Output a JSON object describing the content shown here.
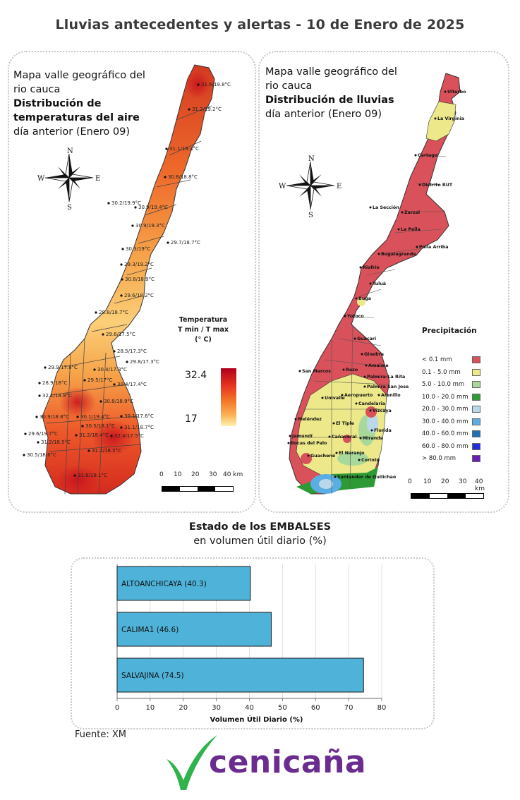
{
  "title": "Lluvias antecedentes y alertas - 10 de Enero de 2025",
  "temp_map": {
    "heading_line1": "Mapa valle geográfico del",
    "heading_line2": "rio cauca",
    "heading_bold1": "Distribución de",
    "heading_bold2": "temperaturas del aire",
    "heading_sub": "día anterior (Enero 09)",
    "compass": {
      "n": "N",
      "s": "S",
      "e": "E",
      "w": "W"
    },
    "legend_title_1": "Temperatura",
    "legend_title_2": "T min / T max",
    "legend_title_3": "(° C)",
    "legend_max": "32.4",
    "legend_min": "17",
    "scale_labels": [
      "0",
      "10",
      "20",
      "30",
      "40 km"
    ],
    "colors": {
      "high": "#b0001c",
      "mid": "#f47a2a",
      "low": "#fdf3b0"
    },
    "stations": [
      "31.6/19.8°C",
      "31.2/19.2°C",
      "31.1/19.4°C",
      "30.8/18.8°C",
      "30.2/19.9°C",
      "30.9/19.4°C",
      "30.9/19.3°C",
      "29.7/18.7°C",
      "30.3/19°C",
      "29.3/19.2°C",
      "30.8/18.9°C",
      "29.6/18.2°C",
      "28.8/18.7°C",
      "29.6/17.5°C",
      "28.5/17.3°C",
      "29.8/17.3°C",
      "29.9/17.8°C",
      "30.4/17.3°C",
      "28.9/18°C",
      "29.5/17°C",
      "30.4/17.4°C",
      "32.1/18.8°C",
      "30.8/18.9°C",
      "30.9/18.8°C",
      "30.1/19.4°C",
      "30.1/17.6°C",
      "30.5/18.1°C",
      "31.1/18.7°C",
      "29.6/19.7°C",
      "31.2/18.4°C",
      "32.4/17.5°C",
      "31.2/18.5°C",
      "31.2/18.5°C",
      "30.5/18.6°C",
      "31.8/19.1°C"
    ]
  },
  "rain_map": {
    "heading_line1": "Mapa valle geográfico del",
    "heading_line2": "rio cauca",
    "heading_bold": "Distribución de lluvias",
    "heading_sub": "día anterior (Enero  09)",
    "compass": {
      "n": "N",
      "s": "S",
      "e": "E",
      "w": "W"
    },
    "legend_title": "Precipitación",
    "legend": [
      {
        "label": "< 0.1 mm",
        "color": "#d9515a"
      },
      {
        "label": "0.1 - 5.0 mm",
        "color": "#ede98a"
      },
      {
        "label": "5.0 - 10.0 mm",
        "color": "#a9d99a"
      },
      {
        "label": "10.0 - 20.0 mm",
        "color": "#2e9a35"
      },
      {
        "label": "20.0 - 30.0 mm",
        "color": "#b9d8ec"
      },
      {
        "label": "30.0 - 40.0 mm",
        "color": "#5aaee3"
      },
      {
        "label": "40.0 - 60.0 mm",
        "color": "#1f6fb5"
      },
      {
        "label": "60.0 - 80.0 mm",
        "color": "#1f2ee0"
      },
      {
        "label": "> 80.0 mm",
        "color": "#6a1fb5"
      }
    ],
    "scale_labels": [
      "0",
      "10",
      "20",
      "30",
      "40 km"
    ],
    "towns": [
      "Ulterbo",
      "La Virginia",
      "Cartago",
      "Distrito RUT",
      "La Sección",
      "Zarzal",
      "La Paila",
      "Paila Arriba",
      "Bugalagrande",
      "Riofrío",
      "Tuluá",
      "Buga",
      "Yotoco",
      "Guacarí",
      "Ginebra",
      "Amaime",
      "Rozo",
      "Palmira-La Rita",
      "San Marcos",
      "Palmira San Jose",
      "Aeropuerto",
      "Arenillo",
      "Univalle",
      "Candelaria",
      "Vizcaya",
      "Meléndez",
      "El Tiple",
      "Florida",
      "Jamundí",
      "Bocas del Palo",
      "Cañaveral",
      "Miranda",
      "El Naranjo",
      "Corinto",
      "Guachené",
      "Santander de Quilichao"
    ]
  },
  "reservoirs": {
    "title_bold": "Estado de los EMBALSES",
    "title_sub": "en volumen útil diario (%)",
    "xlabel": "Volumen Útil Diario (%)",
    "source": "Fuente: XM",
    "bar_color": "#4fb3d9"
  },
  "chart_data": {
    "type": "bar",
    "orientation": "horizontal",
    "categories": [
      "ALTOANCHICAYA (40.3)",
      "CALIMA1 (46.6)",
      "SALVAJINA (74.5)"
    ],
    "values": [
      40.3,
      46.6,
      74.5
    ],
    "xlabel": "Volumen Útil Diario (%)",
    "xlim": [
      0,
      80
    ],
    "xticks": [
      0,
      10,
      20,
      30,
      40,
      50,
      60,
      70,
      80
    ],
    "grid": true
  },
  "logo": {
    "text": "cenicaña",
    "check_color": "#2fb34a",
    "text_color": "#6b2c8f"
  }
}
